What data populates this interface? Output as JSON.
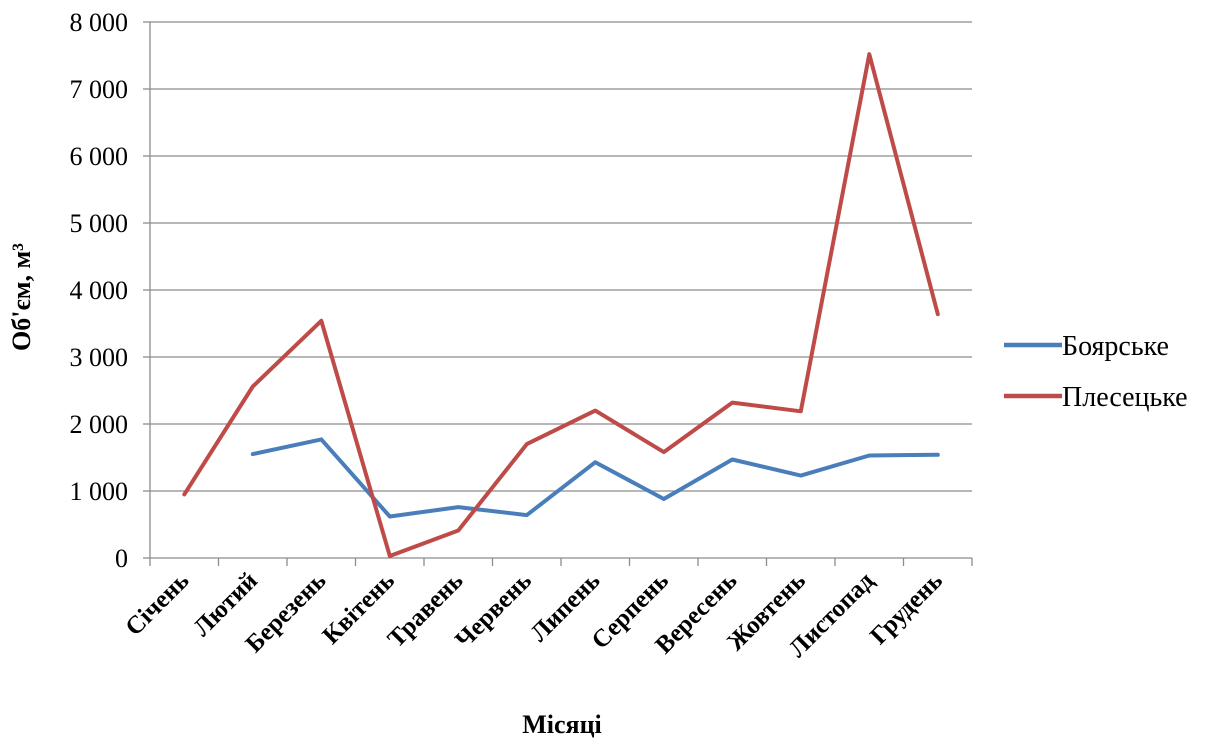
{
  "chart_data": {
    "type": "line",
    "categories": [
      "Січень",
      "Лютий",
      "Березень",
      "Квітень",
      "Травень",
      "Червень",
      "Липень",
      "Серпень",
      "Вересень",
      "Жовтень",
      "Листопад",
      "Грудень"
    ],
    "series": [
      {
        "name": "Боярське",
        "color": "#4a7ebb",
        "values": [
          null,
          1550,
          1770,
          620,
          760,
          640,
          1430,
          880,
          1470,
          1230,
          1530,
          1540
        ]
      },
      {
        "name": "Плесецьке",
        "color": "#be4b48",
        "values": [
          950,
          2560,
          3540,
          30,
          410,
          1700,
          2200,
          1580,
          2320,
          2190,
          7520,
          3640
        ]
      }
    ],
    "ylabel": "Об'єм, м³",
    "xlabel": "Місяці",
    "ylim": [
      0,
      8000
    ],
    "yticks": [
      0,
      1000,
      2000,
      3000,
      4000,
      5000,
      6000,
      7000,
      8000
    ],
    "ytick_labels": [
      "0",
      "1 000",
      "2 000",
      "3 000",
      "4 000",
      "5 000",
      "6 000",
      "7 000",
      "8 000"
    ],
    "grid": true,
    "legend_position": "right"
  }
}
